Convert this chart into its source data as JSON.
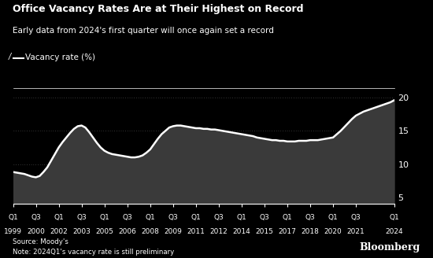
{
  "title": "Office Vacancy Rates Are at Their Highest on Record",
  "subtitle": "Early data from 2024's first quarter will once again set a record",
  "ylabel": "Vacancy rate (%)",
  "background_color": "#000000",
  "text_color": "#ffffff",
  "line_color": "#ffffff",
  "grid_color": "#666666",
  "fill_color": "#444444",
  "source_text": "Source: Moody's",
  "note_text": "Note: 2024Q1's vacancy rate is still preliminary",
  "bloomberg_text": "Bloomberg",
  "ylim": [
    4,
    21.5
  ],
  "yticks": [
    5,
    10,
    15,
    20
  ],
  "values": [
    8.8,
    8.7,
    8.6,
    8.5,
    8.3,
    8.1,
    8.0,
    8.2,
    8.8,
    9.5,
    10.5,
    11.5,
    12.5,
    13.3,
    14.0,
    14.7,
    15.3,
    15.7,
    15.8,
    15.5,
    14.8,
    14.0,
    13.2,
    12.5,
    12.0,
    11.7,
    11.5,
    11.4,
    11.3,
    11.2,
    11.1,
    11.0,
    11.0,
    11.1,
    11.3,
    11.7,
    12.2,
    13.0,
    13.8,
    14.5,
    15.0,
    15.5,
    15.7,
    15.8,
    15.8,
    15.7,
    15.6,
    15.5,
    15.4,
    15.4,
    15.3,
    15.3,
    15.2,
    15.2,
    15.1,
    15.0,
    14.9,
    14.8,
    14.7,
    14.6,
    14.5,
    14.4,
    14.3,
    14.2,
    14.0,
    13.9,
    13.8,
    13.7,
    13.6,
    13.6,
    13.5,
    13.5,
    13.4,
    13.4,
    13.4,
    13.5,
    13.5,
    13.5,
    13.6,
    13.6,
    13.6,
    13.7,
    13.8,
    13.9,
    14.0,
    14.5,
    15.0,
    15.6,
    16.2,
    16.8,
    17.3,
    17.6,
    17.9,
    18.1,
    18.3,
    18.5,
    18.7,
    18.9,
    19.1,
    19.3,
    19.6
  ],
  "x_tick_labels": [
    {
      "q": "Q1",
      "yr": "1999",
      "index": 0
    },
    {
      "q": "Q3",
      "yr": "2000",
      "index": 6
    },
    {
      "q": "Q1",
      "yr": "2002",
      "index": 12
    },
    {
      "q": "Q3",
      "yr": "2003",
      "index": 18
    },
    {
      "q": "Q1",
      "yr": "2005",
      "index": 24
    },
    {
      "q": "Q3",
      "yr": "2006",
      "index": 30
    },
    {
      "q": "Q1",
      "yr": "2008",
      "index": 36
    },
    {
      "q": "Q3",
      "yr": "2009",
      "index": 42
    },
    {
      "q": "Q1",
      "yr": "2011",
      "index": 48
    },
    {
      "q": "Q3",
      "yr": "2012",
      "index": 54
    },
    {
      "q": "Q1",
      "yr": "2014",
      "index": 60
    },
    {
      "q": "Q3",
      "yr": "2015",
      "index": 66
    },
    {
      "q": "Q1",
      "yr": "2017",
      "index": 72
    },
    {
      "q": "Q3",
      "yr": "2018",
      "index": 78
    },
    {
      "q": "Q1",
      "yr": "2020",
      "index": 84
    },
    {
      "q": "Q3",
      "yr": "2021",
      "index": 90
    },
    {
      "q": "Q1",
      "yr": "2024",
      "index": 100
    }
  ]
}
